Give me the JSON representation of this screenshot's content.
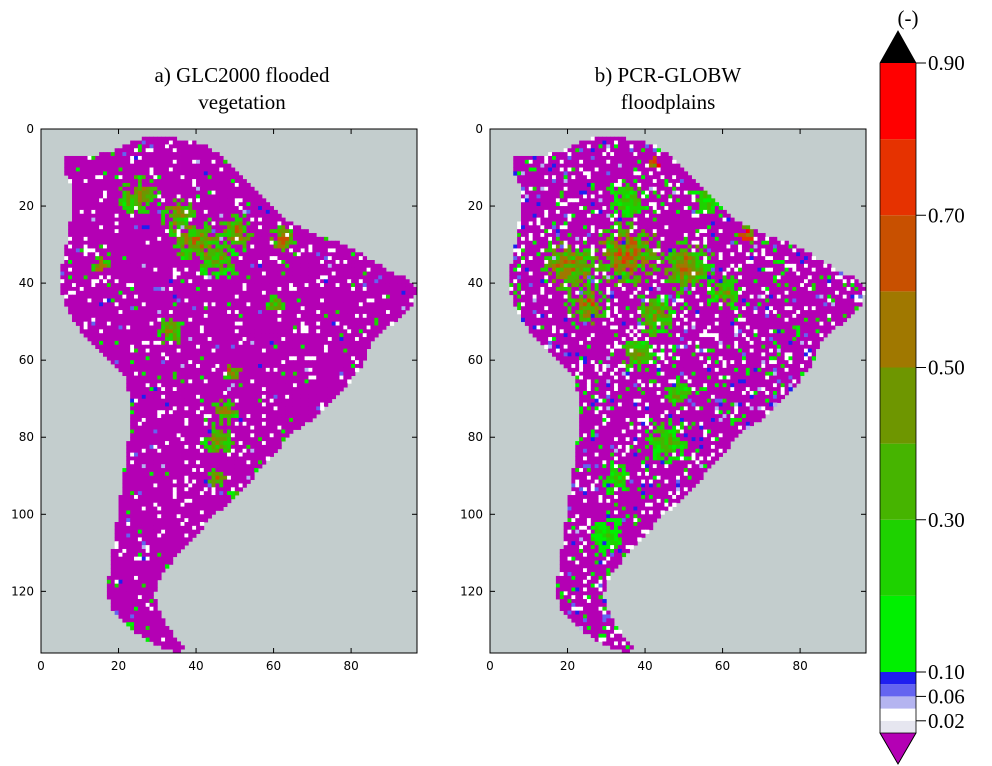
{
  "chart_data": [
    {
      "type": "heatmap",
      "title": "a) GLC2000 flooded vegetation",
      "title_lines": [
        "a) GLC2000 flooded",
        "vegetation"
      ],
      "x_ticks": [
        0,
        20,
        40,
        60,
        80
      ],
      "y_ticks": [
        0,
        20,
        40,
        60,
        80,
        100,
        120
      ],
      "xlim": [
        0,
        97
      ],
      "ylim": [
        136,
        0
      ],
      "background": "ocean / no data",
      "grid": false
    },
    {
      "type": "heatmap",
      "title": "b) PCR-GLOBW floodplains",
      "title_lines": [
        "b) PCR-GLOBW",
        "floodplains"
      ],
      "x_ticks": [
        0,
        20,
        40,
        60,
        80
      ],
      "y_ticks": [
        0,
        20,
        40,
        60,
        80,
        100,
        120
      ],
      "xlim": [
        0,
        97
      ],
      "ylim": [
        136,
        0
      ],
      "background": "ocean / no data",
      "grid": false
    }
  ],
  "colorbar": {
    "unit_label": "(-)",
    "tick_labels": [
      "0.90",
      "0.70",
      "0.50",
      "0.30",
      "0.10",
      "0.06",
      "0.02"
    ],
    "tick_values": [
      0.9,
      0.7,
      0.5,
      0.3,
      0.1,
      0.06,
      0.02
    ],
    "over_color": "#000000",
    "under_color": "#b400b4",
    "levels": [
      {
        "from": 0.0,
        "to": 0.02,
        "color": "#e6e6f0"
      },
      {
        "from": 0.02,
        "to": 0.04,
        "color": "#ffffff"
      },
      {
        "from": 0.04,
        "to": 0.06,
        "color": "#b4b4f0"
      },
      {
        "from": 0.06,
        "to": 0.08,
        "color": "#6464f0"
      },
      {
        "from": 0.08,
        "to": 0.1,
        "color": "#1e1ef0"
      },
      {
        "from": 0.1,
        "to": 0.2,
        "color": "#00f000"
      },
      {
        "from": 0.2,
        "to": 0.3,
        "color": "#1ed200"
      },
      {
        "from": 0.3,
        "to": 0.4,
        "color": "#46b400"
      },
      {
        "from": 0.4,
        "to": 0.5,
        "color": "#6e9600"
      },
      {
        "from": 0.5,
        "to": 0.6,
        "color": "#a07800"
      },
      {
        "from": 0.6,
        "to": 0.7,
        "color": "#c85000"
      },
      {
        "from": 0.7,
        "to": 0.8,
        "color": "#e63200"
      },
      {
        "from": 0.8,
        "to": 0.9,
        "color": "#ff0000"
      }
    ]
  },
  "colors": {
    "ocean": "#c3cdcd",
    "land_low": "#b400b4"
  }
}
